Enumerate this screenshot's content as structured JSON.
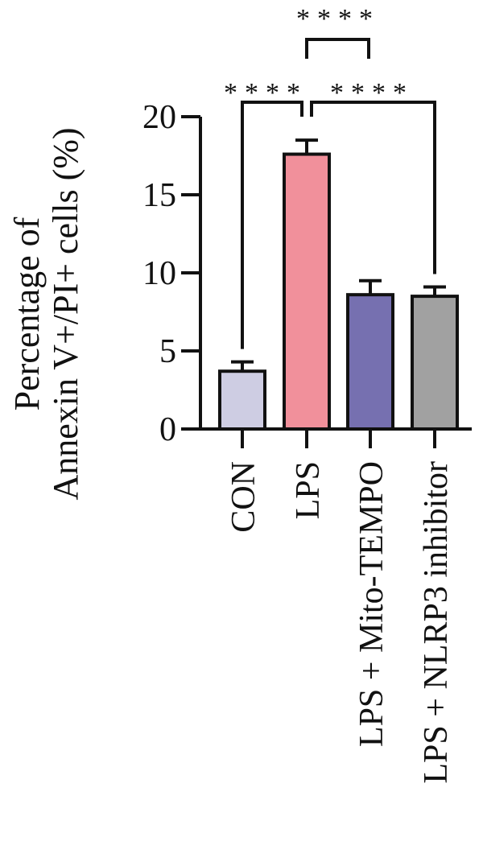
{
  "chart_data": {
    "type": "bar",
    "ylabel_line1": "Percentage of",
    "ylabel_line2": "Annexin V+/PI+ cells (%)",
    "ylim": [
      0,
      20
    ],
    "yticks": [
      0,
      5,
      10,
      15,
      20
    ],
    "categories": [
      "CON",
      "LPS",
      "LPS + Mito-TEMPO",
      "LPS + NLRP3 inhibitor"
    ],
    "values": [
      3.7,
      17.6,
      8.6,
      8.5
    ],
    "errors": [
      0.6,
      0.9,
      0.9,
      0.6
    ],
    "colors": [
      "#cecde3",
      "#f1909b",
      "#7670b0",
      "#a1a1a1"
    ],
    "grid": false,
    "legend": "none",
    "significance": [
      {
        "from": "CON",
        "to": "LPS",
        "label": "****"
      },
      {
        "from": "LPS",
        "to": "LPS + NLRP3 inhibitor",
        "label": "****"
      },
      {
        "from": "LPS",
        "to": "LPS + Mito-TEMPO",
        "label": "****"
      }
    ]
  }
}
